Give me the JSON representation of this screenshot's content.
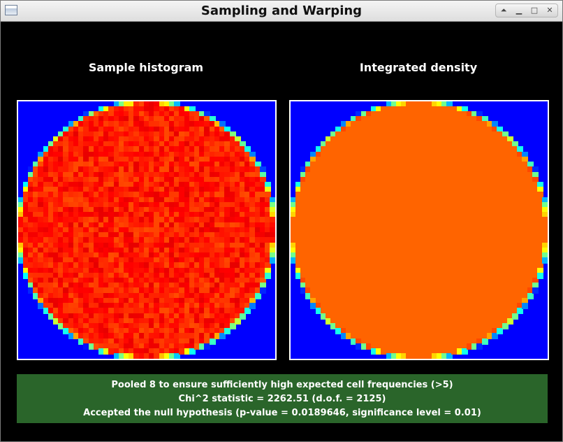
{
  "window": {
    "title": "Sampling and Warping",
    "controls": [
      {
        "name": "shade",
        "glyph": "⏶"
      },
      {
        "name": "minimize",
        "glyph": "▁"
      },
      {
        "name": "maximize",
        "glyph": "□"
      },
      {
        "name": "close",
        "glyph": "✕"
      }
    ]
  },
  "panels": {
    "left_title": "Sample histogram",
    "right_title": "Integrated density"
  },
  "status": {
    "line1": "Pooled 8 to ensure sufficiently high expected cell frequencies (>5)",
    "line2": "Chi^2 statistic = 2262.51 (d.o.f. = 2125)",
    "line3": "Accepted the null hypothesis (p-value = 0.0189646, significance level = 0.01)",
    "background": "#2a652a"
  },
  "colors": {
    "background": "#000000",
    "plot_background": "#0000ff",
    "density_fill": "#ff6400"
  },
  "icons": {
    "app": "window-icon"
  }
}
